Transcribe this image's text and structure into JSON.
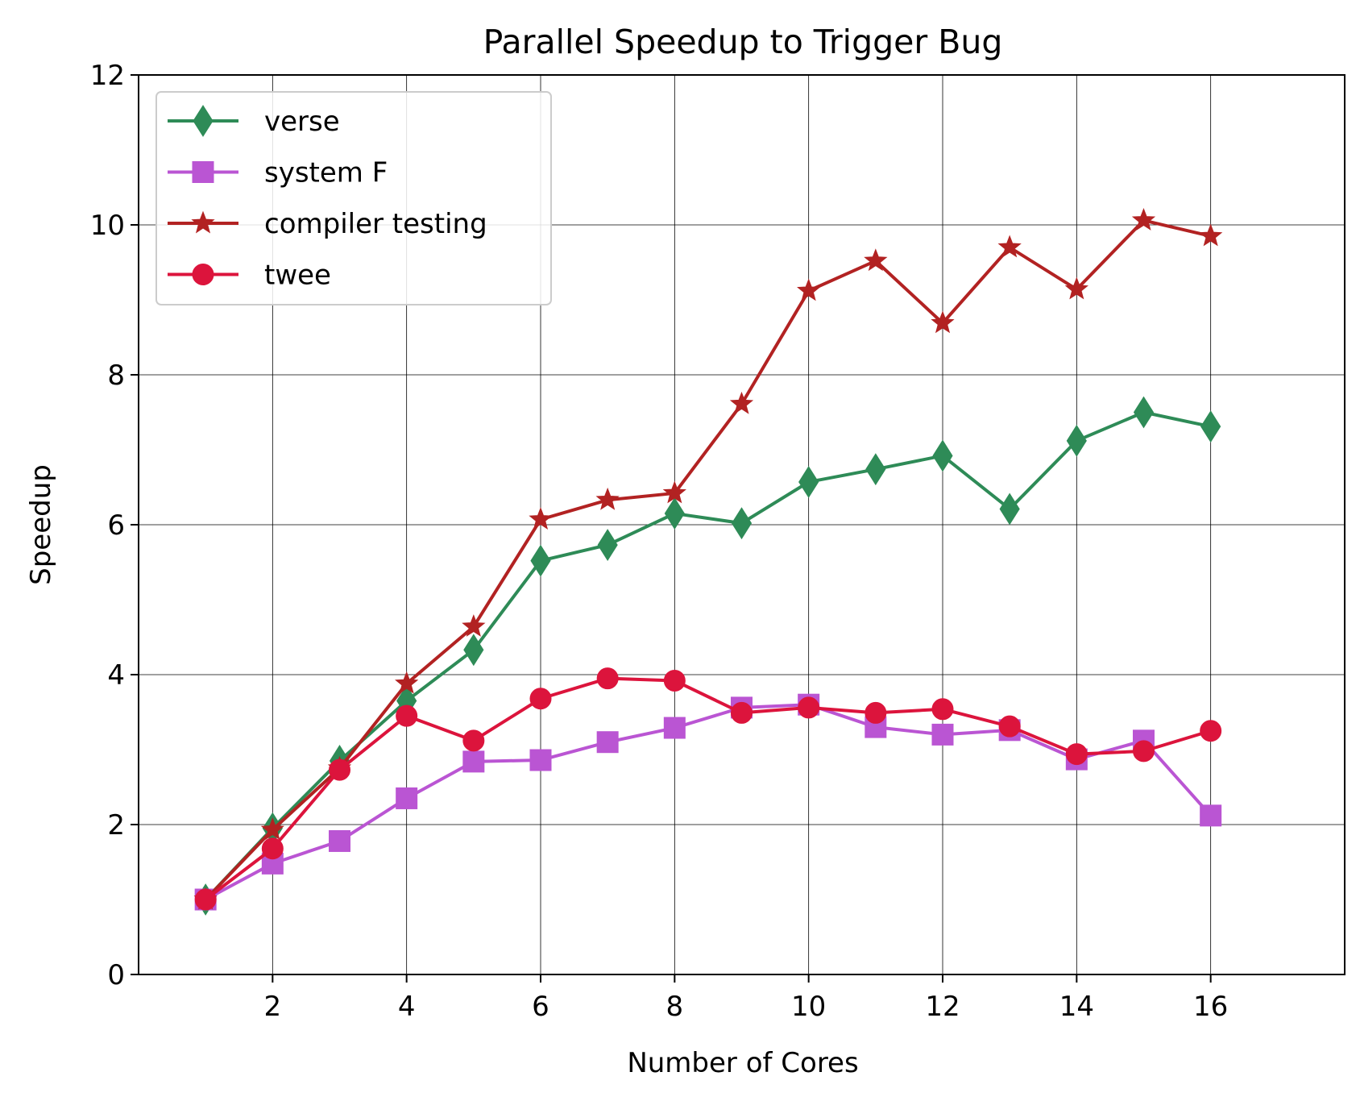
{
  "chart_data": {
    "type": "line",
    "title": "Parallel Speedup to Trigger Bug",
    "xlabel": "Number of Cores",
    "ylabel": "Speedup",
    "xlim": [
      0,
      18
    ],
    "ylim": [
      0,
      12
    ],
    "xticks": [
      2,
      4,
      6,
      8,
      10,
      12,
      14,
      16
    ],
    "yticks": [
      0,
      2,
      4,
      6,
      8,
      10,
      12
    ],
    "grid": true,
    "legend_position": "top-left",
    "x": [
      1,
      2,
      3,
      4,
      5,
      6,
      7,
      8,
      9,
      10,
      11,
      12,
      13,
      14,
      15,
      16
    ],
    "series": [
      {
        "name": "verse",
        "color": "#2e8b57",
        "marker": "thin-diamond",
        "values": [
          1.0,
          1.95,
          2.85,
          3.65,
          4.33,
          5.52,
          5.73,
          6.15,
          6.02,
          6.57,
          6.74,
          6.92,
          6.21,
          7.12,
          7.5,
          7.31
        ]
      },
      {
        "name": "system F",
        "color": "#ba55d3",
        "marker": "square",
        "values": [
          1.0,
          1.48,
          1.78,
          2.35,
          2.84,
          2.86,
          3.1,
          3.29,
          3.56,
          3.6,
          3.3,
          3.2,
          3.26,
          2.87,
          3.12,
          2.12
        ]
      },
      {
        "name": "compiler testing",
        "color": "#b22222",
        "marker": "star",
        "values": [
          1.0,
          1.93,
          2.75,
          3.88,
          4.64,
          6.07,
          6.33,
          6.42,
          7.61,
          9.12,
          9.52,
          8.69,
          9.7,
          9.14,
          10.06,
          9.85
        ]
      },
      {
        "name": "twee",
        "color": "#dc143c",
        "marker": "circle",
        "values": [
          1.0,
          1.68,
          2.73,
          3.45,
          3.12,
          3.68,
          3.95,
          3.92,
          3.49,
          3.56,
          3.49,
          3.54,
          3.31,
          2.94,
          2.98,
          3.25
        ]
      }
    ]
  }
}
